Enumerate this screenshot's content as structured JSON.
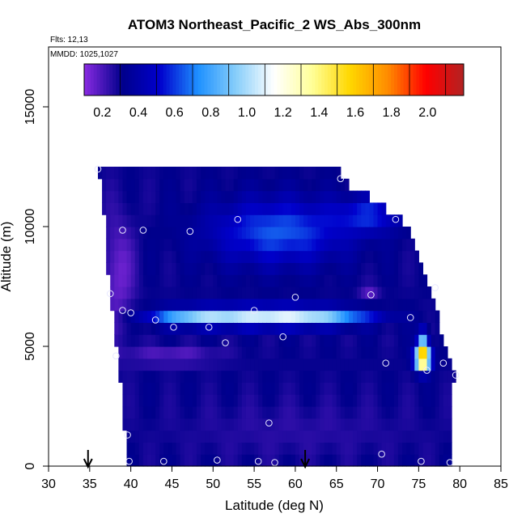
{
  "chart_data": {
    "type": "heatmap",
    "title": "ATOM3 Northeast_Pacific_2 WS_Abs_300nm",
    "notes": [
      "Flts: 12,13",
      "MMDD: 1025,1027"
    ],
    "xlabel": "Latitude (deg N)",
    "ylabel": "Altitude (m)",
    "xlim": [
      30,
      85
    ],
    "ylim": [
      0,
      17500
    ],
    "xticks": [
      30,
      35,
      40,
      45,
      50,
      55,
      60,
      65,
      70,
      75,
      80,
      85
    ],
    "yticks": [
      0,
      5000,
      10000,
      15000
    ],
    "colorbar": {
      "range": [
        0.1,
        2.2
      ],
      "ticks": [
        0.2,
        0.4,
        0.6,
        0.8,
        1.0,
        1.2,
        1.4,
        1.6,
        1.8,
        2.0
      ],
      "tick_labels": [
        "0.2",
        "0.4",
        "0.6",
        "0.8",
        "1.0",
        "1.2",
        "1.4",
        "1.6",
        "1.8",
        "2.0"
      ],
      "colors": [
        "#8a2be2",
        "#00008b",
        "#0000cd",
        "#1e90ff",
        "#87cefa",
        "#ffffff",
        "#ffff99",
        "#ffd700",
        "#ff8c00",
        "#ff0000",
        "#b22222"
      ]
    },
    "field": {
      "lat_step": 0.5,
      "alt_step": 500,
      "envelope": [
        [
          36,
          12500
        ],
        [
          38,
          12500
        ],
        [
          40,
          12500
        ],
        [
          45,
          12500
        ],
        [
          50,
          12500
        ],
        [
          55,
          12500
        ],
        [
          60,
          12500
        ],
        [
          65,
          12500
        ],
        [
          66.5,
          11800
        ],
        [
          69,
          11200
        ],
        [
          71,
          10800
        ],
        [
          73,
          10300
        ],
        [
          74.5,
          9500
        ],
        [
          75.5,
          8500
        ],
        [
          76.5,
          7500
        ],
        [
          77.5,
          6000
        ],
        [
          78.5,
          4500
        ],
        [
          79.5,
          4000
        ],
        [
          79,
          3000
        ],
        [
          79,
          0
        ],
        [
          39.5,
          0
        ],
        [
          39.3,
          1500
        ],
        [
          39,
          3000
        ],
        [
          38.5,
          4500
        ],
        [
          37.5,
          7000
        ],
        [
          37,
          9500
        ],
        [
          36.5,
          11500
        ]
      ],
      "background": 0.3,
      "features": [
        {
          "lat": 56,
          "alt": 6250,
          "dlat": 9,
          "dalt": 380,
          "amp": 0.7
        },
        {
          "lat": 47,
          "alt": 6250,
          "dlat": 5,
          "dalt": 350,
          "amp": 0.35
        },
        {
          "lat": 64,
          "alt": 6250,
          "dlat": 6,
          "dalt": 350,
          "amp": 0.3
        },
        {
          "lat": 58,
          "alt": 9800,
          "dlat": 8,
          "dalt": 1300,
          "amp": 0.35
        },
        {
          "lat": 69,
          "alt": 10500,
          "dlat": 4,
          "dalt": 700,
          "amp": 0.25
        },
        {
          "lat": 75.5,
          "alt": 4500,
          "dlat": 0.9,
          "dalt": 450,
          "amp": 1.55
        },
        {
          "lat": 75.5,
          "alt": 5200,
          "dlat": 0.6,
          "dalt": 500,
          "amp": 0.6
        },
        {
          "lat": 38.5,
          "alt": 8000,
          "dlat": 2,
          "dalt": 2500,
          "amp": -0.15
        },
        {
          "lat": 45,
          "alt": 4600,
          "dlat": 6,
          "dalt": 400,
          "amp": -0.12
        },
        {
          "lat": 69,
          "alt": 7200,
          "dlat": 1.2,
          "dalt": 400,
          "amp": -0.12
        },
        {
          "lat": 60,
          "alt": 1500,
          "dlat": 15,
          "dalt": 1200,
          "amp": -0.05
        }
      ]
    },
    "sample_points": [
      [
        36,
        12400
      ],
      [
        65.5,
        12000
      ],
      [
        39,
        9850
      ],
      [
        41.5,
        9850
      ],
      [
        47.2,
        9800
      ],
      [
        53,
        10300
      ],
      [
        72.2,
        10300
      ],
      [
        37.5,
        7200
      ],
      [
        60,
        7050
      ],
      [
        69.2,
        7150
      ],
      [
        77,
        7450
      ],
      [
        39,
        6500
      ],
      [
        40,
        6400
      ],
      [
        43,
        6100
      ],
      [
        45.2,
        5800
      ],
      [
        49.5,
        5800
      ],
      [
        55,
        6500
      ],
      [
        74,
        6200
      ],
      [
        51.5,
        5150
      ],
      [
        58.5,
        5400
      ],
      [
        38.2,
        4600
      ],
      [
        71,
        4300
      ],
      [
        76,
        4000
      ],
      [
        78,
        4300
      ],
      [
        79.5,
        3800
      ],
      [
        56.8,
        1800
      ],
      [
        39.6,
        1300
      ],
      [
        70.5,
        500
      ],
      [
        39.8,
        200
      ],
      [
        44,
        200
      ],
      [
        50.5,
        250
      ],
      [
        55.5,
        200
      ],
      [
        57.5,
        150
      ],
      [
        75.3,
        200
      ],
      [
        78.8,
        150
      ]
    ],
    "markers": [
      34.8,
      61.2
    ]
  }
}
